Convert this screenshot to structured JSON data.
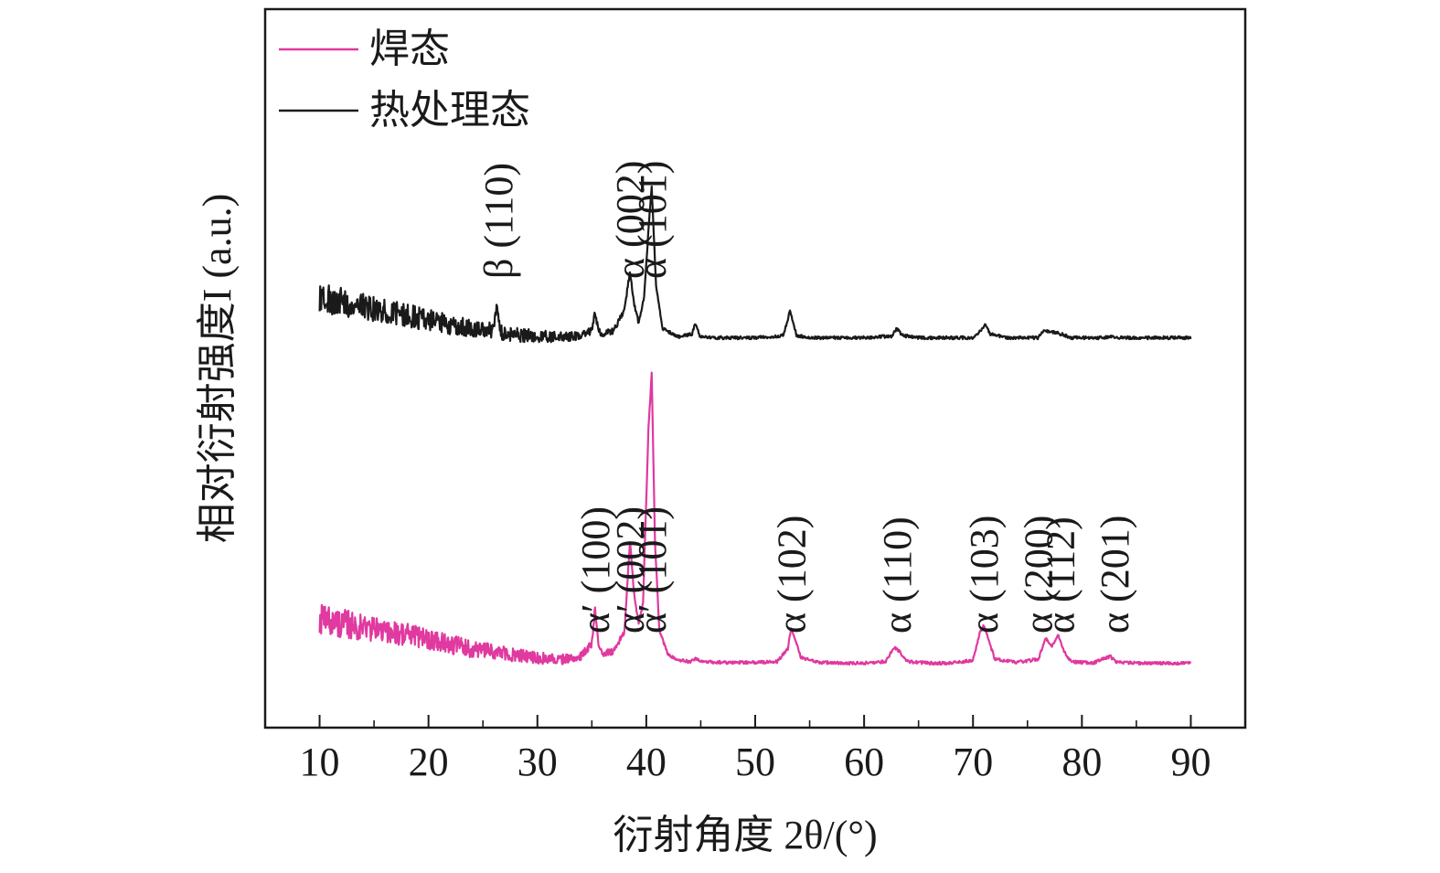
{
  "chart_data": {
    "type": "line",
    "xlabel": "衍射角度 2θ/(°)",
    "ylabel": "相对衍射强度I (a.u.)",
    "xlim": [
      5,
      95
    ],
    "xticks": [
      10,
      20,
      30,
      40,
      50,
      60,
      70,
      80,
      90
    ],
    "xtick_labels": [
      "10",
      "20",
      "30",
      "40",
      "50",
      "60",
      "70",
      "80",
      "90"
    ],
    "yticks": false,
    "grid": false,
    "legend": {
      "position": "top-left"
    },
    "series": [
      {
        "name": "焊态",
        "color": "#e0399f",
        "x": [
          10,
          12,
          14,
          16,
          18,
          20,
          22,
          24,
          26,
          28,
          30,
          32,
          33,
          34,
          35,
          35.3,
          35.6,
          36,
          37,
          38,
          38.5,
          38.9,
          39.3,
          39.7,
          40.2,
          40.5,
          40.8,
          41.2,
          42,
          43,
          44,
          44.5,
          45,
          47,
          50,
          52,
          53,
          53.3,
          53.7,
          54.2,
          56,
          58,
          60,
          62,
          62.8,
          63.3,
          64,
          66,
          68,
          70,
          70.6,
          71,
          71.4,
          72,
          74,
          76,
          76.7,
          77.2,
          77.8,
          78.3,
          79,
          81,
          82.6,
          83.2,
          85,
          88,
          90
        ],
        "values": [
          0.6,
          0.55,
          0.5,
          0.45,
          0.4,
          0.35,
          0.28,
          0.22,
          0.17,
          0.13,
          0.1,
          0.08,
          0.09,
          0.12,
          0.28,
          0.75,
          0.3,
          0.16,
          0.18,
          0.45,
          1.62,
          0.9,
          0.55,
          0.8,
          3.1,
          3.8,
          1.6,
          0.45,
          0.14,
          0.07,
          0.05,
          0.09,
          0.05,
          0.04,
          0.04,
          0.05,
          0.22,
          0.5,
          0.32,
          0.1,
          0.04,
          0.03,
          0.03,
          0.05,
          0.24,
          0.17,
          0.05,
          0.03,
          0.03,
          0.07,
          0.42,
          0.52,
          0.35,
          0.08,
          0.04,
          0.08,
          0.36,
          0.24,
          0.4,
          0.2,
          0.05,
          0.03,
          0.12,
          0.04,
          0.03,
          0.03,
          0.03
        ]
      },
      {
        "name": "热处理态",
        "color": "#1a1a1a",
        "x": [
          10,
          12,
          14,
          16,
          18,
          20,
          22,
          24,
          26,
          26.3,
          26.6,
          28,
          30,
          32,
          34,
          35,
          35.3,
          35.6,
          36,
          37,
          38,
          38.5,
          38.9,
          39.3,
          39.8,
          40.3,
          40.5,
          40.9,
          41.5,
          43,
          44.2,
          44.5,
          44.9,
          46,
          50,
          52.6,
          53.2,
          53.8,
          55,
          60,
          62.5,
          63,
          63.5,
          65,
          70,
          70.8,
          71.1,
          71.6,
          73,
          76,
          76.5,
          77.5,
          78.3,
          79,
          82,
          82.7,
          83.3,
          86,
          88,
          90
        ],
        "values": [
          0.55,
          0.5,
          0.45,
          0.38,
          0.32,
          0.26,
          0.2,
          0.15,
          0.12,
          0.45,
          0.1,
          0.07,
          0.05,
          0.04,
          0.05,
          0.12,
          0.38,
          0.12,
          0.08,
          0.12,
          0.4,
          0.9,
          0.45,
          0.22,
          0.55,
          1.65,
          2.0,
          0.7,
          0.15,
          0.04,
          0.08,
          0.22,
          0.05,
          0.03,
          0.03,
          0.06,
          0.38,
          0.06,
          0.03,
          0.03,
          0.05,
          0.15,
          0.06,
          0.03,
          0.03,
          0.14,
          0.2,
          0.08,
          0.03,
          0.03,
          0.12,
          0.1,
          0.07,
          0.03,
          0.03,
          0.05,
          0.03,
          0.03,
          0.03,
          0.03
        ]
      }
    ],
    "annotations": {
      "heat_treated": [
        {
          "x": 26.4,
          "text": "β (110)"
        },
        {
          "x": 38.5,
          "text": "α (002)"
        },
        {
          "x": 40.5,
          "text": "α (101)"
        }
      ],
      "welded": [
        {
          "x": 35.3,
          "text": "α′ (100)"
        },
        {
          "x": 38.5,
          "text": "α′ (002)"
        },
        {
          "x": 40.5,
          "text": "α′ (101)"
        },
        {
          "x": 53.3,
          "text": "α (102)"
        },
        {
          "x": 63.0,
          "text": "α (110)"
        },
        {
          "x": 71.0,
          "text": "α (103)"
        },
        {
          "x": 76.0,
          "text": "α (200)"
        },
        {
          "x": 78.0,
          "text": "α (112)"
        },
        {
          "x": 83.0,
          "text": "α (201)"
        }
      ]
    }
  }
}
